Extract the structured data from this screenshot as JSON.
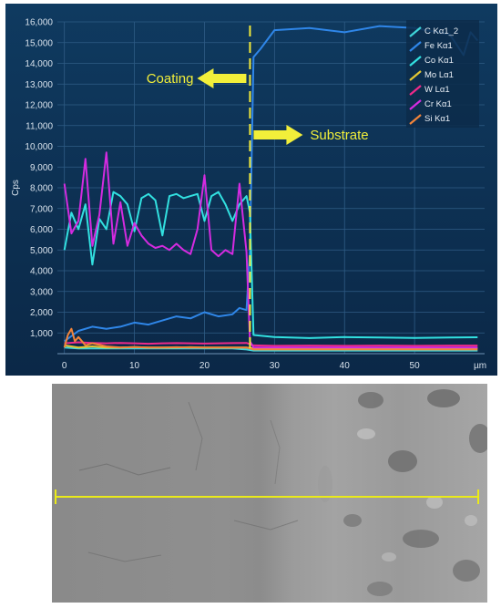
{
  "chart_data": {
    "type": "line",
    "xlabel": "µm",
    "ylabel": "Cps",
    "xlim": [
      -1,
      60
    ],
    "ylim": [
      0,
      16000
    ],
    "xticks": [
      0,
      10,
      20,
      30,
      40,
      50
    ],
    "yticks": [
      1000,
      2000,
      3000,
      4000,
      5000,
      6000,
      7000,
      8000,
      9000,
      10000,
      11000,
      12000,
      13000,
      14000,
      15000,
      16000
    ],
    "ytick_labels": [
      "1,000",
      "2,000",
      "3,000",
      "4,000",
      "5,000",
      "6,000",
      "7,000",
      "8,000",
      "9,000",
      "10,000",
      "11,000",
      "12,000",
      "13,000",
      "14,000",
      "15,000",
      "16,000"
    ],
    "grid": true,
    "legend_position": "top-right",
    "boundary_x": 26.5,
    "annotations": [
      {
        "text": "Coating",
        "direction": "left"
      },
      {
        "text": "Substrate",
        "direction": "right"
      }
    ],
    "series": [
      {
        "name": "C Kα1_2",
        "color": "#3fd4d8",
        "x": [
          0,
          2,
          4,
          6,
          8,
          10,
          12,
          14,
          16,
          18,
          20,
          22,
          24,
          26,
          27,
          30,
          35,
          40,
          45,
          50,
          55,
          59
        ],
        "values": [
          300,
          250,
          250,
          250,
          250,
          250,
          250,
          250,
          250,
          250,
          250,
          250,
          250,
          200,
          150,
          150,
          150,
          150,
          150,
          150,
          150,
          150
        ]
      },
      {
        "name": "Fe Kα1",
        "color": "#2f86e8",
        "x": [
          0,
          2,
          4,
          6,
          8,
          10,
          12,
          14,
          16,
          18,
          20,
          22,
          24,
          25,
          26,
          26.5,
          27,
          28,
          30,
          35,
          40,
          45,
          50,
          55,
          57,
          58,
          59
        ],
        "values": [
          600,
          1100,
          1300,
          1200,
          1300,
          1500,
          1400,
          1600,
          1800,
          1700,
          2000,
          1800,
          1900,
          2200,
          2100,
          5000,
          14300,
          14700,
          15600,
          15700,
          15500,
          15800,
          15700,
          15400,
          14400,
          15500,
          15100
        ]
      },
      {
        "name": "Co Kα1",
        "color": "#32e0e0",
        "x": [
          0,
          1,
          2,
          3,
          4,
          5,
          6,
          7,
          8,
          9,
          10,
          11,
          12,
          13,
          14,
          15,
          16,
          17,
          18,
          19,
          20,
          21,
          22,
          23,
          24,
          25,
          26,
          26.5,
          27,
          30,
          35,
          40,
          45,
          50,
          55,
          59
        ],
        "values": [
          5000,
          6800,
          6000,
          7200,
          4300,
          6500,
          6000,
          7800,
          7600,
          7200,
          5900,
          7500,
          7700,
          7400,
          5700,
          7600,
          7700,
          7500,
          7600,
          7700,
          6400,
          7600,
          7800,
          7200,
          6400,
          7200,
          7600,
          6800,
          900,
          800,
          750,
          800,
          780,
          760,
          780,
          790
        ]
      },
      {
        "name": "Mo Lα1",
        "color": "#e3c733",
        "x": [
          0,
          2,
          4,
          6,
          8,
          10,
          12,
          14,
          16,
          18,
          20,
          22,
          24,
          26,
          27,
          30,
          35,
          40,
          45,
          50,
          55,
          59
        ],
        "values": [
          400,
          300,
          350,
          300,
          300,
          320,
          300,
          300,
          300,
          310,
          300,
          300,
          300,
          300,
          250,
          250,
          250,
          250,
          250,
          250,
          250,
          250
        ]
      },
      {
        "name": "W Lα1",
        "color": "#ee2a8a",
        "x": [
          0,
          2,
          4,
          6,
          8,
          10,
          12,
          14,
          16,
          18,
          20,
          22,
          24,
          26,
          27,
          30,
          35,
          40,
          45,
          50,
          55,
          59
        ],
        "values": [
          500,
          550,
          520,
          500,
          520,
          500,
          480,
          500,
          510,
          500,
          490,
          500,
          510,
          520,
          400,
          380,
          390,
          380,
          390,
          380,
          390,
          390
        ]
      },
      {
        "name": "Cr Kα1",
        "color": "#d42be0",
        "x": [
          0,
          1,
          2,
          3,
          4,
          5,
          6,
          7,
          8,
          9,
          10,
          11,
          12,
          13,
          14,
          15,
          16,
          17,
          18,
          19,
          20,
          21,
          22,
          23,
          24,
          25,
          26,
          26.5,
          27,
          30,
          35,
          40,
          45,
          50,
          55,
          59
        ],
        "values": [
          8200,
          5800,
          6400,
          9400,
          5200,
          6700,
          9700,
          5300,
          7300,
          5200,
          6300,
          5700,
          5300,
          5100,
          5200,
          5000,
          5300,
          5000,
          4800,
          6000,
          8600,
          5000,
          4700,
          5000,
          4800,
          8200,
          4900,
          600,
          300,
          300,
          300,
          300,
          300,
          300,
          300,
          300
        ]
      },
      {
        "name": "Si Kα1",
        "color": "#f2843a",
        "x": [
          0,
          0.5,
          1,
          1.5,
          2,
          3,
          4,
          6,
          8,
          10,
          12,
          14,
          16,
          18,
          20,
          22,
          24,
          26,
          27,
          30,
          35,
          40,
          45,
          50,
          55,
          59
        ],
        "values": [
          300,
          900,
          1200,
          600,
          800,
          400,
          500,
          350,
          300,
          320,
          300,
          300,
          310,
          300,
          300,
          300,
          300,
          300,
          200,
          200,
          200,
          200,
          200,
          200,
          200,
          200
        ]
      }
    ]
  }
}
